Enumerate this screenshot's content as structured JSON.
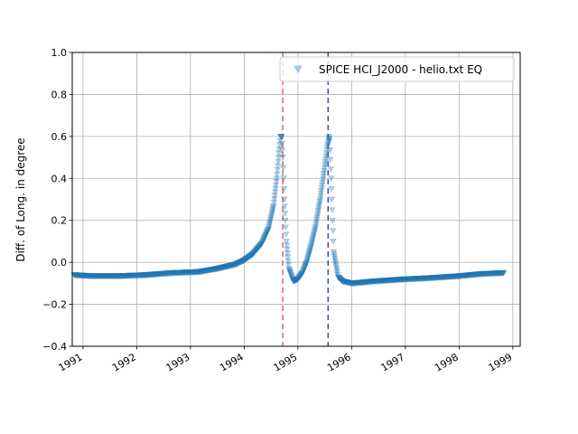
{
  "chart_data": {
    "type": "scatter",
    "ylabel": "Diff. of Long. in degree",
    "xlabel": "",
    "ylim": [
      -0.4,
      1.0
    ],
    "xlim": [
      "1990-10-20",
      "1999-02-20"
    ],
    "grid": true,
    "legend_position": "top-right",
    "x_ticks": [
      "1991",
      "1992",
      "1993",
      "1994",
      "1995",
      "1996",
      "1997",
      "1998",
      "1999"
    ],
    "y_ticks": [
      "−0.4",
      "−0.2",
      "0.0",
      "0.2",
      "0.4",
      "0.6",
      "0.8",
      "1.0"
    ],
    "y_tick_values": [
      -0.4,
      -0.2,
      0.0,
      0.2,
      0.4,
      0.6,
      0.8,
      1.0
    ],
    "series": [
      {
        "name": "SPICE HCI_J2000 - helio.txt EQ",
        "marker": "triangle-down",
        "color": "#1f77b4",
        "x": [
          "1990-11-01",
          "1991-03-01",
          "1991-09-01",
          "1992-03-01",
          "1992-09-01",
          "1993-03-01",
          "1993-07-01",
          "1993-11-01",
          "1994-01-01",
          "1994-03-01",
          "1994-05-01",
          "1994-06-15",
          "1994-07-20",
          "1994-08-10",
          "1994-08-25",
          "1994-09-05",
          "1994-09-12",
          "1994-09-20",
          "1994-10-01",
          "1994-10-15",
          "1994-11-01",
          "1994-12-01",
          "1995-01-01",
          "1995-02-01",
          "1995-03-01",
          "1995-04-01",
          "1995-05-01",
          "1995-06-01",
          "1995-07-01",
          "1995-07-20",
          "1995-08-01",
          "1995-08-05",
          "1995-08-15",
          "1995-09-01",
          "1995-10-01",
          "1995-11-01",
          "1996-01-01",
          "1996-06-01",
          "1997-01-01",
          "1997-06-01",
          "1998-01-01",
          "1998-06-01",
          "1998-11-01"
        ],
        "values": [
          -0.06,
          -0.065,
          -0.065,
          -0.06,
          -0.05,
          -0.045,
          -0.03,
          -0.01,
          0.01,
          0.04,
          0.09,
          0.16,
          0.27,
          0.4,
          0.52,
          0.6,
          0.6,
          0.5,
          0.3,
          0.1,
          -0.03,
          -0.09,
          -0.08,
          -0.05,
          0.0,
          0.08,
          0.17,
          0.3,
          0.45,
          0.55,
          0.6,
          0.58,
          0.4,
          0.05,
          -0.07,
          -0.09,
          -0.1,
          -0.09,
          -0.08,
          -0.075,
          -0.065,
          -0.055,
          -0.05
        ]
      }
    ],
    "vlines": [
      {
        "x": "1994-09-20",
        "color": "#e06666"
      },
      {
        "x": "1995-07-25",
        "color": "#3b4aa8"
      }
    ]
  }
}
